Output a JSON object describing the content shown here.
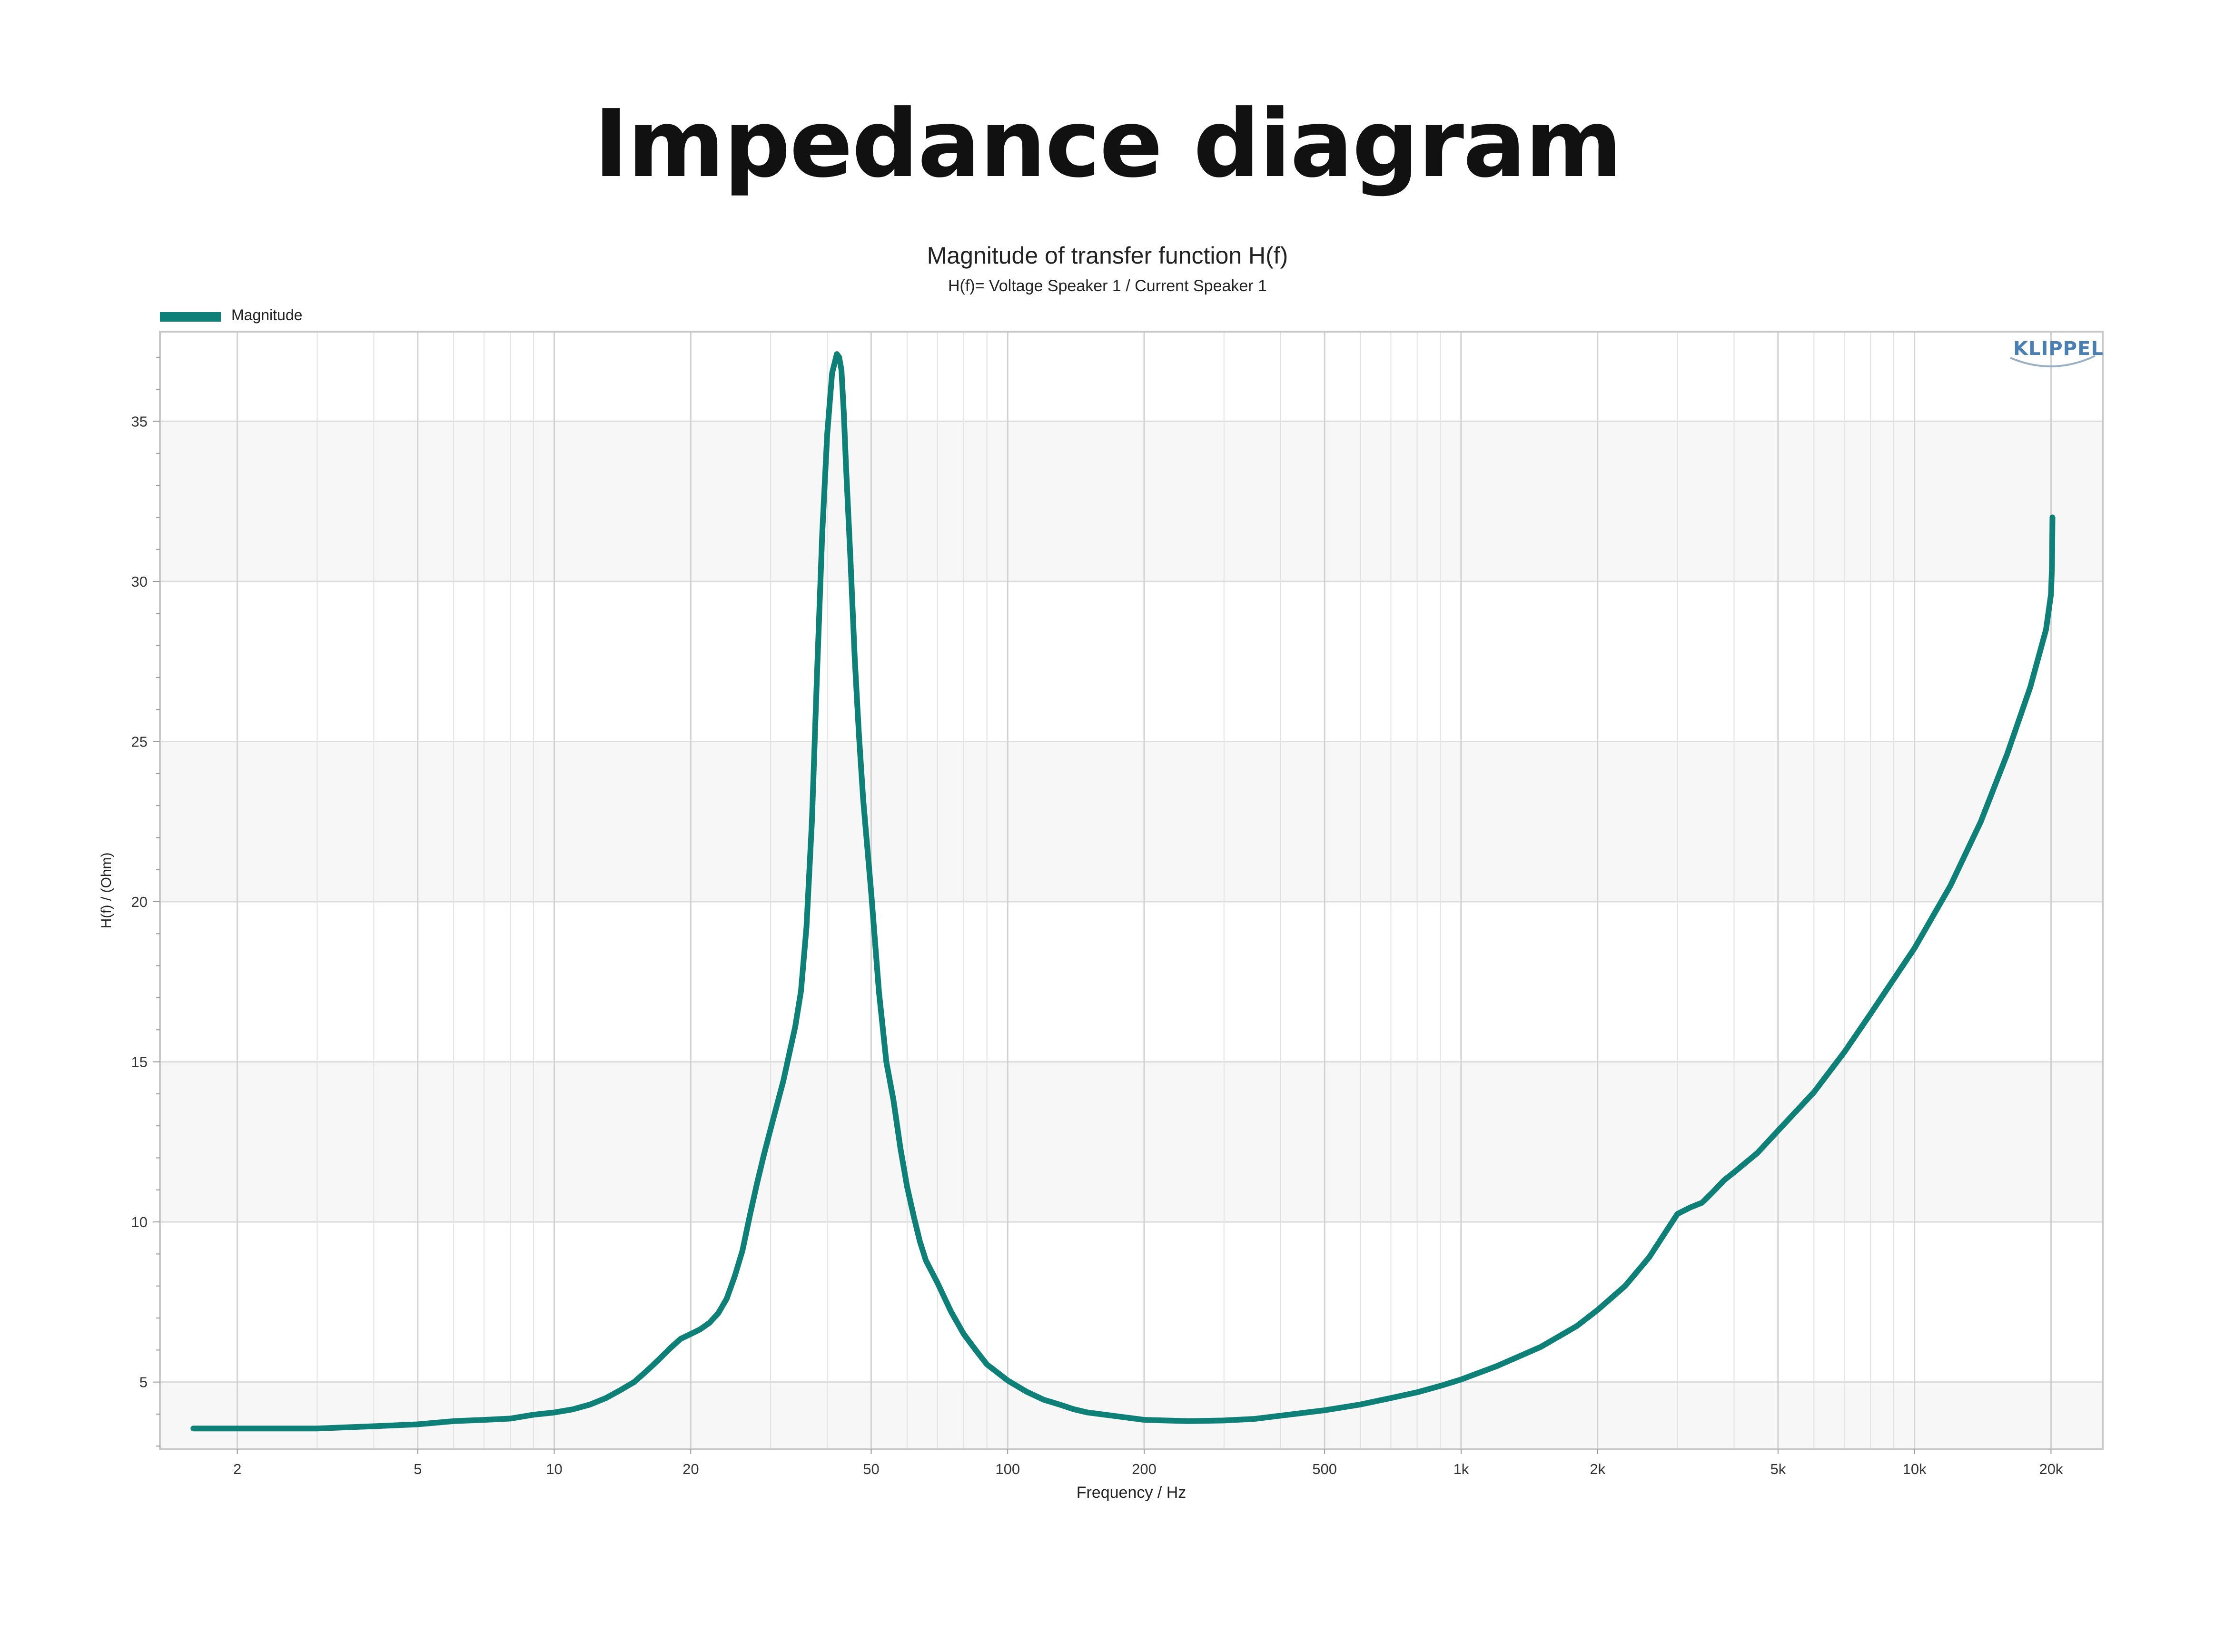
{
  "title": "Impedance diagram",
  "brand": "KLIPPEL",
  "chart_data": {
    "type": "line",
    "title": "Magnitude of transfer function H(f)",
    "subtitle": "H(f)= Voltage Speaker 1 / Current Speaker 1",
    "xlabel": "Frequency / Hz",
    "ylabel": "H(f) / (Ohm)",
    "x_scale": "log",
    "xlim": [
      1.35,
      26000
    ],
    "ylim": [
      2.9,
      37.8
    ],
    "x_ticks": [
      {
        "value": 2,
        "label": "2"
      },
      {
        "value": 5,
        "label": "5"
      },
      {
        "value": 10,
        "label": "10"
      },
      {
        "value": 20,
        "label": "20"
      },
      {
        "value": 50,
        "label": "50"
      },
      {
        "value": 100,
        "label": "100"
      },
      {
        "value": 200,
        "label": "200"
      },
      {
        "value": 500,
        "label": "500"
      },
      {
        "value": 1000,
        "label": "1k"
      },
      {
        "value": 2000,
        "label": "2k"
      },
      {
        "value": 5000,
        "label": "5k"
      },
      {
        "value": 10000,
        "label": "10k"
      },
      {
        "value": 20000,
        "label": "20k"
      }
    ],
    "y_ticks": [
      {
        "value": 5,
        "label": "5"
      },
      {
        "value": 10,
        "label": "10"
      },
      {
        "value": 15,
        "label": "15"
      },
      {
        "value": 20,
        "label": "20"
      },
      {
        "value": 25,
        "label": "25"
      },
      {
        "value": 30,
        "label": "30"
      },
      {
        "value": 35,
        "label": "35"
      }
    ],
    "grid": true,
    "legend_position": "top-left",
    "series": [
      {
        "name": "Magnitude",
        "color": "#0e8078",
        "x": [
          1.6,
          2,
          3,
          4,
          5,
          6,
          7,
          8,
          9,
          10,
          11,
          12,
          13,
          14,
          15,
          16,
          17,
          18,
          19,
          20,
          21,
          22,
          23,
          24,
          25,
          26,
          27,
          28,
          29,
          30,
          32,
          34,
          35,
          36,
          37,
          38,
          39,
          40,
          41,
          42,
          42.5,
          43,
          43.5,
          44,
          45,
          46,
          47,
          48,
          50,
          52,
          54,
          56,
          58,
          60,
          62,
          64,
          66,
          70,
          75,
          80,
          85,
          90,
          100,
          110,
          120,
          130,
          140,
          150,
          170,
          200,
          250,
          300,
          350,
          400,
          500,
          600,
          700,
          800,
          900,
          1000,
          1200,
          1500,
          1800,
          2000,
          2300,
          2600,
          2800,
          3000,
          3200,
          3400,
          3600,
          3800,
          4000,
          4500,
          5000,
          6000,
          7000,
          8000,
          10000,
          12000,
          14000,
          16000,
          18000,
          19500,
          20000,
          20100,
          20150
        ],
        "y": [
          3.55,
          3.55,
          3.55,
          3.62,
          3.68,
          3.78,
          3.82,
          3.86,
          3.98,
          4.05,
          4.15,
          4.3,
          4.5,
          4.75,
          5.0,
          5.35,
          5.7,
          6.05,
          6.35,
          6.5,
          6.65,
          6.85,
          7.15,
          7.6,
          8.3,
          9.1,
          10.2,
          11.2,
          12.1,
          12.9,
          14.4,
          16.1,
          17.2,
          19.2,
          22.5,
          27.2,
          31.5,
          34.6,
          36.5,
          37.1,
          37.0,
          36.6,
          35.3,
          33.6,
          30.7,
          27.6,
          25.2,
          23.2,
          20.3,
          17.2,
          15.0,
          13.8,
          12.3,
          11.1,
          10.2,
          9.4,
          8.8,
          8.1,
          7.2,
          6.5,
          6.0,
          5.55,
          5.05,
          4.7,
          4.45,
          4.3,
          4.15,
          4.05,
          3.95,
          3.82,
          3.78,
          3.8,
          3.85,
          3.95,
          4.12,
          4.3,
          4.5,
          4.68,
          4.88,
          5.08,
          5.5,
          6.1,
          6.75,
          7.25,
          8.0,
          8.9,
          9.6,
          10.25,
          10.45,
          10.6,
          10.95,
          11.3,
          11.55,
          12.15,
          12.85,
          14.05,
          15.3,
          16.5,
          18.55,
          20.5,
          22.5,
          24.6,
          26.7,
          28.5,
          29.6,
          30.5,
          32.0
        ]
      }
    ]
  }
}
